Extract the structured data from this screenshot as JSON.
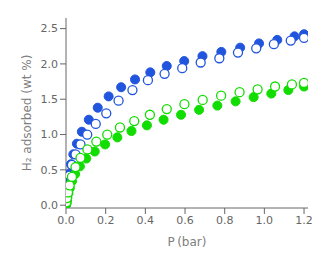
{
  "chart_data": {
    "type": "scatter",
    "x_label": "P (bar)",
    "y_label": "H₂ adsorbed (wt %)",
    "xlim": [
      0.0,
      1.22
    ],
    "ylim": [
      -0.04,
      2.65
    ],
    "xticks": [
      {
        "value": 0.0,
        "label": "0.0"
      },
      0.2,
      0.4,
      0.6,
      0.8,
      {
        "value": 1.0,
        "label": "1.0"
      },
      1.2
    ],
    "yticks": [
      {
        "value": 0.0,
        "label": "0.0"
      },
      0.5,
      {
        "value": 1.0,
        "label": "1.0"
      },
      1.5,
      {
        "value": 2.0,
        "label": "2.0"
      },
      2.5
    ],
    "grid": false,
    "series": [
      {
        "color": "#2255dd",
        "marker": "circle",
        "x": [
          0.0005,
          0.001,
          0.002,
          0.004,
          0.007,
          0.011,
          0.017,
          0.025,
          0.037,
          0.055,
          0.08,
          0.115,
          0.16,
          0.215,
          0.278,
          0.348,
          0.425,
          0.508,
          0.596,
          0.688,
          0.783,
          0.878,
          0.973,
          1.065,
          1.152,
          1.2
        ],
        "values": [
          0.01,
          0.03,
          0.06,
          0.12,
          0.21,
          0.32,
          0.45,
          0.58,
          0.72,
          0.87,
          1.04,
          1.21,
          1.38,
          1.54,
          1.67,
          1.78,
          1.88,
          1.97,
          2.04,
          2.11,
          2.17,
          2.23,
          2.29,
          2.34,
          2.39,
          2.42
        ]
      },
      {
        "color": "#2255dd",
        "marker": "open_circle",
        "x": [
          0.002,
          0.005,
          0.01,
          0.018,
          0.03,
          0.048,
          0.073,
          0.107,
          0.15,
          0.203,
          0.265,
          0.335,
          0.413,
          0.497,
          0.586,
          0.679,
          0.773,
          0.867,
          0.959,
          1.048,
          1.133,
          1.2
        ],
        "values": [
          0.07,
          0.16,
          0.28,
          0.42,
          0.57,
          0.72,
          0.86,
          1.0,
          1.15,
          1.3,
          1.48,
          1.63,
          1.77,
          1.86,
          1.94,
          2.02,
          2.08,
          2.16,
          2.22,
          2.28,
          2.33,
          2.37
        ]
      },
      {
        "color": "#11dd00",
        "marker": "circle",
        "x": [
          0.0005,
          0.001,
          0.002,
          0.004,
          0.007,
          0.012,
          0.019,
          0.03,
          0.046,
          0.07,
          0.102,
          0.145,
          0.197,
          0.259,
          0.33,
          0.408,
          0.492,
          0.58,
          0.671,
          0.763,
          0.855,
          0.946,
          1.035,
          1.121,
          1.2
        ],
        "values": [
          0.01,
          0.02,
          0.03,
          0.06,
          0.11,
          0.17,
          0.24,
          0.34,
          0.44,
          0.55,
          0.66,
          0.76,
          0.86,
          0.96,
          1.05,
          1.13,
          1.21,
          1.28,
          1.35,
          1.41,
          1.47,
          1.53,
          1.58,
          1.63,
          1.68
        ]
      },
      {
        "color": "#11dd00",
        "marker": "open_circle",
        "x": [
          0.002,
          0.005,
          0.01,
          0.018,
          0.03,
          0.048,
          0.073,
          0.108,
          0.153,
          0.208,
          0.272,
          0.344,
          0.423,
          0.508,
          0.597,
          0.689,
          0.782,
          0.875,
          0.966,
          1.054,
          1.139,
          1.2
        ],
        "values": [
          0.04,
          0.1,
          0.18,
          0.28,
          0.4,
          0.54,
          0.67,
          0.79,
          0.9,
          1.0,
          1.1,
          1.19,
          1.28,
          1.36,
          1.43,
          1.49,
          1.55,
          1.6,
          1.64,
          1.68,
          1.71,
          1.73
        ]
      }
    ]
  }
}
